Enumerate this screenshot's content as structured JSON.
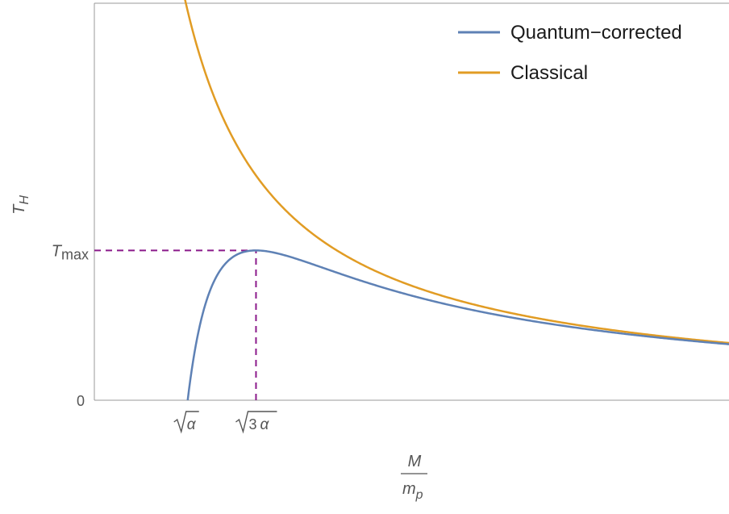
{
  "chart_data": {
    "type": "line",
    "title": "",
    "xlabel": {
      "numerator": "M",
      "denominator": "m",
      "denominator_sub": "p"
    },
    "ylabel": {
      "symbol": "T",
      "sub": "H"
    },
    "alpha": 1,
    "xlim": [
      0,
      6.8
    ],
    "ylim": [
      0,
      2.65
    ],
    "x_ticks": [
      {
        "value": 1.0,
        "radicand_coef": "",
        "radicand_var": "α"
      },
      {
        "value": 1.732,
        "radicand_coef": "3",
        "radicand_var": "α"
      }
    ],
    "y_ticks": [
      {
        "value": 0,
        "label": "0"
      },
      {
        "value": 1.0,
        "label": "T",
        "label_sub": "max"
      }
    ],
    "series": [
      {
        "name": "Quantum−corrected",
        "color": "#5E81B5",
        "formula": "T_H ∝ (2M/3√3α)·(1 − α/M²) ·… scaled so Tmax = 1 at M = √(3α)",
        "x_range": [
          1.0,
          6.8
        ]
      },
      {
        "name": "Classical",
        "color": "#E19C24",
        "formula": "T_H = 2√3/(3M)·scale (∝ 1/M)",
        "x_range": [
          0.95,
          6.8
        ]
      }
    ],
    "reference_lines": [
      {
        "type": "horizontal",
        "y": 1.0,
        "x_from": 0,
        "x_to": 1.732,
        "color": "#8B1A8B",
        "dashed": true
      },
      {
        "type": "vertical",
        "x": 1.732,
        "y_from": 0,
        "y_to": 1.0,
        "color": "#8B1A8B",
        "dashed": true
      }
    ],
    "legend_position": "top-right",
    "grid": false
  }
}
